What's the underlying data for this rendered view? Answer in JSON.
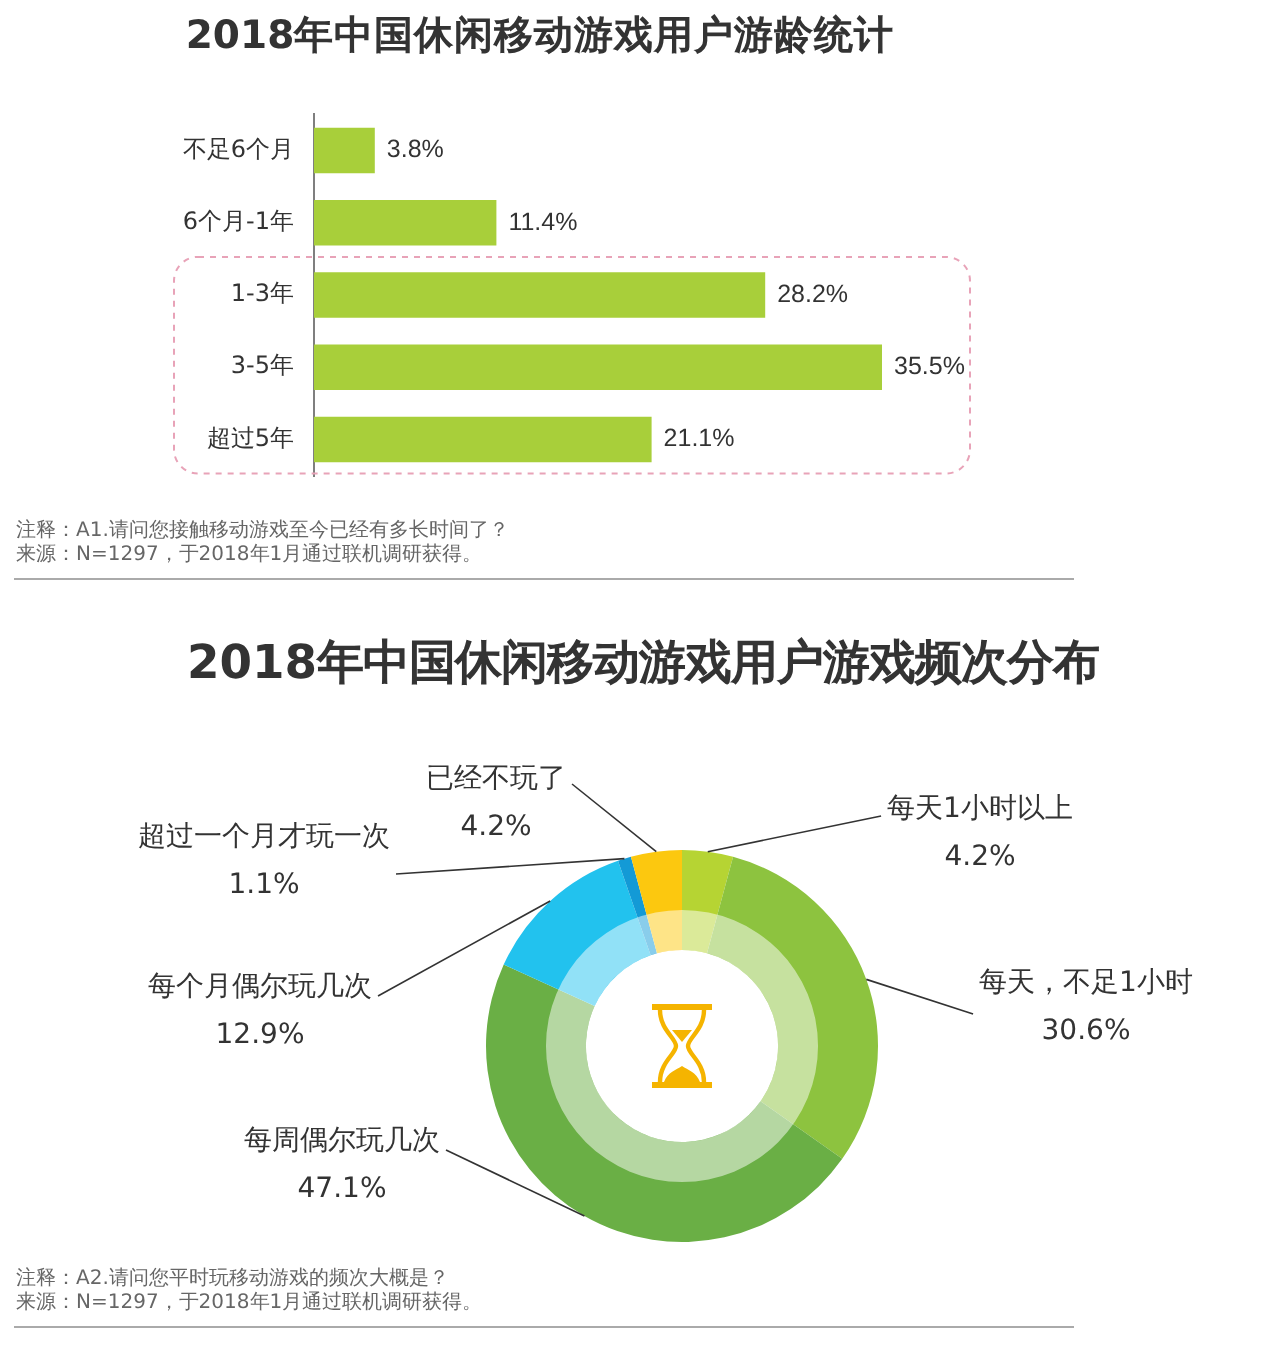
{
  "chart_data": [
    {
      "type": "bar",
      "orientation": "horizontal",
      "title": "2018年中国休闲移动游戏用户游龄统计",
      "categories": [
        "不足6个月",
        "6个月-1年",
        "1-3年",
        "3-5年",
        "超过5年"
      ],
      "values": [
        3.8,
        11.4,
        28.2,
        35.5,
        21.1
      ],
      "value_labels": [
        "3.8%",
        "11.4%",
        "28.2%",
        "35.5%",
        "21.1%"
      ],
      "color": "#a8cf3a",
      "tick_labels": "y",
      "annotations": [
        "注释：A1.请问您接触移动游戏至今已经有多长时间了？",
        "来源：N=1297，于2018年1月通过联机调研获得。"
      ]
    },
    {
      "type": "donut",
      "title": "2018年中国休闲移动游戏用户游戏频次分布",
      "categories": [
        "每天1小时以上",
        "每天，不足1小时",
        "每周偶尔玩几次",
        "每个月偶尔玩几次",
        "超过一个月才玩一次",
        "已经不玩了"
      ],
      "values": [
        4.2,
        30.6,
        47.1,
        12.9,
        1.1,
        4.2
      ],
      "value_labels": [
        "4.2%",
        "30.6%",
        "47.1%",
        "12.9%",
        "1.1%",
        "4.2%"
      ],
      "colors": [
        "#b6d433",
        "#8dc33f",
        "#6aaf45",
        "#22c2ee",
        "#139ad6",
        "#fcc80f"
      ],
      "annotations": [
        "注释：A2.请问您平时玩移动游戏的频次大概是？",
        "来源：N=1297，于2018年1月通过联机调研获得。"
      ]
    }
  ]
}
